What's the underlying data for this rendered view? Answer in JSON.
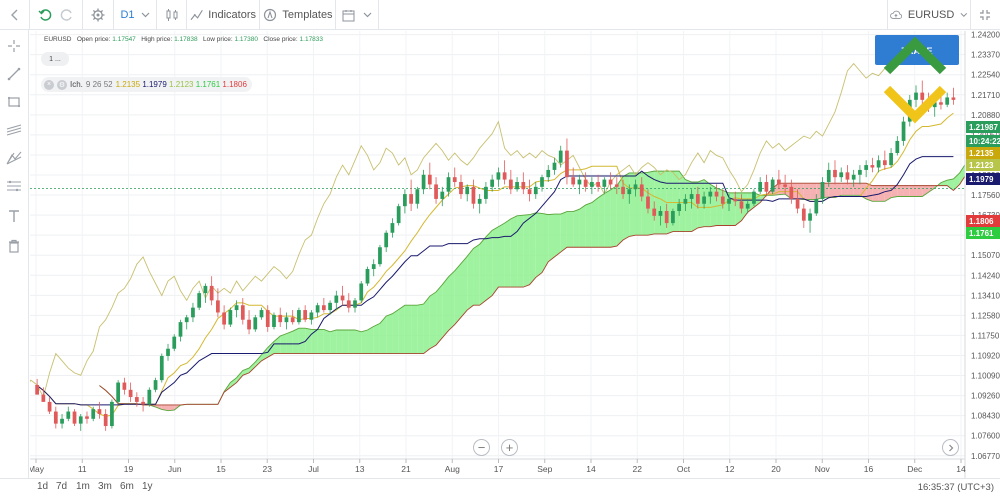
{
  "toolbar": {
    "timeframe": "D1",
    "indicators_label": "Indicators",
    "templates_label": "Templates",
    "symbol": "EURUSD"
  },
  "info": {
    "symbol": "EURUSD",
    "open_label": "Open price:",
    "open": "1.17547",
    "high_label": "High price:",
    "high": "1.17838",
    "low_label": "Low price:",
    "low": "1.17380",
    "close_label": "Close price:",
    "close": "1.17833"
  },
  "interval_pill": "1 ...",
  "ichimoku": {
    "name": "Ich.",
    "params": "9 26 52",
    "values": [
      "1.2135",
      "1.1979",
      "1.2123",
      "1.1761",
      "1.1806"
    ],
    "colors": [
      "#c8a80a",
      "#1a1a6e",
      "#9bc34a",
      "#2ecc40",
      "#e23b3b"
    ]
  },
  "colors": {
    "bull": "#2a9d5c",
    "bear": "#e05a5a",
    "tenkan": "#d4b830",
    "kijun": "#1a1a6e",
    "chikou": "#c8c070",
    "kumo_bull": "#8ef08e",
    "kumo_bear": "#f4a4a4",
    "span_a": "#5aa53b",
    "span_b": "#a8442e",
    "promo_button": "#2f7dd3",
    "logo_green": "#3a9a3f",
    "logo_yellow": "#f0c419"
  },
  "promo_button_label": "TRADE",
  "chart_data": {
    "type": "candlestick",
    "symbol": "EURUSD",
    "timeframe": "D1",
    "ylim": [
      1.0676,
      1.2435
    ],
    "y_ticks": [
      "1.24200",
      "1.23370",
      "1.22540",
      "1.21710",
      "1.20880",
      "1.20050",
      "1.19220",
      "1.18390",
      "1.17560",
      "1.16730",
      "1.15900",
      "1.15070",
      "1.14240",
      "1.13410",
      "1.12580",
      "1.11750",
      "1.10920",
      "1.10090",
      "1.09260",
      "1.08430",
      "1.07600",
      "1.06770"
    ],
    "x_labels": [
      "May",
      "11",
      "19",
      "Jun",
      "15",
      "23",
      "Jul",
      "13",
      "21",
      "Aug",
      "17",
      "Sep",
      "14",
      "22",
      "Oct",
      "12",
      "20",
      "Nov",
      "16",
      "Dec",
      "14"
    ],
    "candles": [
      [
        1.097,
        1.0995,
        1.094,
        1.093
      ],
      [
        1.093,
        1.096,
        1.09,
        1.09
      ],
      [
        1.09,
        1.092,
        1.085,
        1.086
      ],
      [
        1.086,
        1.088,
        1.079,
        1.081
      ],
      [
        1.081,
        1.085,
        1.079,
        1.083
      ],
      [
        1.083,
        1.088,
        1.082,
        1.086
      ],
      [
        1.086,
        1.087,
        1.08,
        1.081
      ],
      [
        1.081,
        1.085,
        1.078,
        1.084
      ],
      [
        1.084,
        1.086,
        1.081,
        1.083
      ],
      [
        1.083,
        1.088,
        1.082,
        1.087
      ],
      [
        1.087,
        1.09,
        1.083,
        1.085
      ],
      [
        1.085,
        1.087,
        1.078,
        1.08
      ],
      [
        1.08,
        1.091,
        1.079,
        1.09
      ],
      [
        1.09,
        1.099,
        1.089,
        1.098
      ],
      [
        1.098,
        1.1,
        1.093,
        1.095
      ],
      [
        1.095,
        1.098,
        1.09,
        1.092
      ],
      [
        1.092,
        1.094,
        1.088,
        1.09
      ],
      [
        1.09,
        1.092,
        1.086,
        1.089
      ],
      [
        1.089,
        1.096,
        1.088,
        1.095
      ],
      [
        1.095,
        1.1,
        1.094,
        1.099
      ],
      [
        1.099,
        1.11,
        1.098,
        1.109
      ],
      [
        1.109,
        1.114,
        1.107,
        1.112
      ],
      [
        1.112,
        1.118,
        1.111,
        1.117
      ],
      [
        1.117,
        1.124,
        1.115,
        1.123
      ],
      [
        1.123,
        1.126,
        1.12,
        1.125
      ],
      [
        1.125,
        1.131,
        1.123,
        1.129
      ],
      [
        1.129,
        1.136,
        1.128,
        1.135
      ],
      [
        1.135,
        1.139,
        1.131,
        1.138
      ],
      [
        1.138,
        1.142,
        1.13,
        1.132
      ],
      [
        1.132,
        1.137,
        1.125,
        1.127
      ],
      [
        1.127,
        1.13,
        1.12,
        1.122
      ],
      [
        1.122,
        1.129,
        1.121,
        1.128
      ],
      [
        1.128,
        1.132,
        1.125,
        1.13
      ],
      [
        1.13,
        1.133,
        1.122,
        1.124
      ],
      [
        1.124,
        1.128,
        1.118,
        1.12
      ],
      [
        1.12,
        1.126,
        1.119,
        1.125
      ],
      [
        1.125,
        1.129,
        1.124,
        1.128
      ],
      [
        1.128,
        1.13,
        1.119,
        1.121
      ],
      [
        1.121,
        1.127,
        1.12,
        1.126
      ],
      [
        1.126,
        1.129,
        1.121,
        1.123
      ],
      [
        1.123,
        1.127,
        1.12,
        1.125
      ],
      [
        1.125,
        1.128,
        1.122,
        1.123
      ],
      [
        1.123,
        1.129,
        1.122,
        1.128
      ],
      [
        1.128,
        1.13,
        1.123,
        1.124
      ],
      [
        1.124,
        1.128,
        1.122,
        1.127
      ],
      [
        1.127,
        1.131,
        1.125,
        1.13
      ],
      [
        1.13,
        1.133,
        1.127,
        1.128
      ],
      [
        1.128,
        1.132,
        1.126,
        1.131
      ],
      [
        1.131,
        1.136,
        1.128,
        1.134
      ],
      [
        1.134,
        1.138,
        1.13,
        1.132
      ],
      [
        1.132,
        1.135,
        1.127,
        1.129
      ],
      [
        1.129,
        1.133,
        1.127,
        1.132
      ],
      [
        1.132,
        1.14,
        1.131,
        1.139
      ],
      [
        1.139,
        1.146,
        1.138,
        1.145
      ],
      [
        1.145,
        1.149,
        1.142,
        1.147
      ],
      [
        1.147,
        1.155,
        1.146,
        1.154
      ],
      [
        1.154,
        1.161,
        1.152,
        1.16
      ],
      [
        1.16,
        1.166,
        1.158,
        1.164
      ],
      [
        1.164,
        1.172,
        1.163,
        1.171
      ],
      [
        1.171,
        1.178,
        1.168,
        1.176
      ],
      [
        1.176,
        1.182,
        1.169,
        1.172
      ],
      [
        1.172,
        1.179,
        1.17,
        1.178
      ],
      [
        1.178,
        1.186,
        1.176,
        1.184
      ],
      [
        1.184,
        1.189,
        1.178,
        1.18
      ],
      [
        1.18,
        1.183,
        1.172,
        1.174
      ],
      [
        1.174,
        1.179,
        1.171,
        1.177
      ],
      [
        1.177,
        1.185,
        1.175,
        1.183
      ],
      [
        1.183,
        1.187,
        1.179,
        1.181
      ],
      [
        1.181,
        1.184,
        1.174,
        1.176
      ],
      [
        1.176,
        1.18,
        1.173,
        1.179
      ],
      [
        1.179,
        1.182,
        1.17,
        1.172
      ],
      [
        1.172,
        1.176,
        1.168,
        1.174
      ],
      [
        1.174,
        1.181,
        1.172,
        1.179
      ],
      [
        1.179,
        1.184,
        1.177,
        1.182
      ],
      [
        1.182,
        1.187,
        1.179,
        1.185
      ],
      [
        1.185,
        1.19,
        1.18,
        1.182
      ],
      [
        1.182,
        1.186,
        1.176,
        1.178
      ],
      [
        1.178,
        1.183,
        1.177,
        1.181
      ],
      [
        1.181,
        1.185,
        1.176,
        1.178
      ],
      [
        1.178,
        1.182,
        1.173,
        1.176
      ],
      [
        1.176,
        1.181,
        1.174,
        1.179
      ],
      [
        1.179,
        1.184,
        1.177,
        1.183
      ],
      [
        1.183,
        1.188,
        1.181,
        1.186
      ],
      [
        1.186,
        1.191,
        1.184,
        1.189
      ],
      [
        1.189,
        1.196,
        1.187,
        1.194
      ],
      [
        1.194,
        1.199,
        1.18,
        1.183
      ],
      [
        1.183,
        1.187,
        1.179,
        1.18
      ],
      [
        1.18,
        1.184,
        1.176,
        1.182
      ],
      [
        1.182,
        1.185,
        1.177,
        1.179
      ],
      [
        1.179,
        1.183,
        1.176,
        1.181
      ],
      [
        1.181,
        1.184,
        1.177,
        1.179
      ],
      [
        1.179,
        1.183,
        1.176,
        1.182
      ],
      [
        1.182,
        1.185,
        1.178,
        1.18
      ],
      [
        1.18,
        1.183,
        1.176,
        1.179
      ],
      [
        1.179,
        1.182,
        1.174,
        1.176
      ],
      [
        1.176,
        1.18,
        1.172,
        1.178
      ],
      [
        1.178,
        1.182,
        1.175,
        1.18
      ],
      [
        1.18,
        1.183,
        1.173,
        1.175
      ],
      [
        1.175,
        1.178,
        1.168,
        1.17
      ],
      [
        1.17,
        1.173,
        1.165,
        1.167
      ],
      [
        1.167,
        1.171,
        1.163,
        1.169
      ],
      [
        1.169,
        1.172,
        1.162,
        1.164
      ],
      [
        1.164,
        1.17,
        1.163,
        1.169
      ],
      [
        1.169,
        1.174,
        1.167,
        1.172
      ],
      [
        1.172,
        1.176,
        1.169,
        1.174
      ],
      [
        1.174,
        1.178,
        1.17,
        1.176
      ],
      [
        1.176,
        1.179,
        1.17,
        1.172
      ],
      [
        1.172,
        1.177,
        1.17,
        1.175
      ],
      [
        1.175,
        1.179,
        1.172,
        1.177
      ],
      [
        1.177,
        1.18,
        1.173,
        1.175
      ],
      [
        1.175,
        1.178,
        1.17,
        1.172
      ],
      [
        1.172,
        1.176,
        1.169,
        1.174
      ],
      [
        1.174,
        1.177,
        1.171,
        1.173
      ],
      [
        1.173,
        1.176,
        1.168,
        1.17
      ],
      [
        1.17,
        1.174,
        1.168,
        1.172
      ],
      [
        1.172,
        1.178,
        1.171,
        1.177
      ],
      [
        1.177,
        1.183,
        1.176,
        1.181
      ],
      [
        1.181,
        1.184,
        1.175,
        1.177
      ],
      [
        1.177,
        1.183,
        1.176,
        1.182
      ],
      [
        1.182,
        1.186,
        1.178,
        1.18
      ],
      [
        1.18,
        1.184,
        1.176,
        1.179
      ],
      [
        1.179,
        1.182,
        1.172,
        1.174
      ],
      [
        1.174,
        1.178,
        1.168,
        1.17
      ],
      [
        1.17,
        1.172,
        1.162,
        1.165
      ],
      [
        1.165,
        1.17,
        1.16,
        1.168
      ],
      [
        1.168,
        1.176,
        1.167,
        1.174
      ],
      [
        1.174,
        1.183,
        1.172,
        1.181
      ],
      [
        1.181,
        1.189,
        1.179,
        1.186
      ],
      [
        1.186,
        1.19,
        1.18,
        1.183
      ],
      [
        1.183,
        1.187,
        1.181,
        1.185
      ],
      [
        1.185,
        1.188,
        1.18,
        1.182
      ],
      [
        1.182,
        1.186,
        1.179,
        1.184
      ],
      [
        1.184,
        1.188,
        1.18,
        1.186
      ],
      [
        1.186,
        1.19,
        1.183,
        1.188
      ],
      [
        1.188,
        1.191,
        1.185,
        1.187
      ],
      [
        1.187,
        1.192,
        1.185,
        1.19
      ],
      [
        1.19,
        1.194,
        1.186,
        1.188
      ],
      [
        1.188,
        1.195,
        1.187,
        1.193
      ],
      [
        1.193,
        1.2,
        1.192,
        1.198
      ],
      [
        1.198,
        1.208,
        1.196,
        1.206
      ],
      [
        1.206,
        1.217,
        1.204,
        1.215
      ],
      [
        1.215,
        1.221,
        1.212,
        1.218
      ],
      [
        1.218,
        1.223,
        1.213,
        1.215
      ],
      [
        1.215,
        1.218,
        1.21,
        1.212
      ],
      [
        1.212,
        1.216,
        1.208,
        1.214
      ],
      [
        1.214,
        1.217,
        1.211,
        1.213
      ],
      [
        1.213,
        1.218,
        1.212,
        1.216
      ],
      [
        1.216,
        1.22,
        1.213,
        1.215
      ]
    ],
    "price_labels": [
      {
        "value": "1.21987",
        "color": "#2a9d5c"
      },
      {
        "value": "10:24:22",
        "color": "#2a9d5c"
      },
      {
        "value": "1.2135",
        "color": "#c8a80a"
      },
      {
        "value": "1.2123",
        "color": "#b7c64a"
      },
      {
        "value": "1.1979",
        "color": "#1a1a6e"
      },
      {
        "value": "1.1806",
        "color": "#e23b3b"
      },
      {
        "value": "1.1761",
        "color": "#2ecc40"
      }
    ]
  },
  "bottom": {
    "periods": [
      "1d",
      "7d",
      "1m",
      "3m",
      "6m",
      "1y"
    ],
    "clock": "16:35:37 (UTC+3)",
    "zoom_out": "−",
    "zoom_in": "+"
  }
}
